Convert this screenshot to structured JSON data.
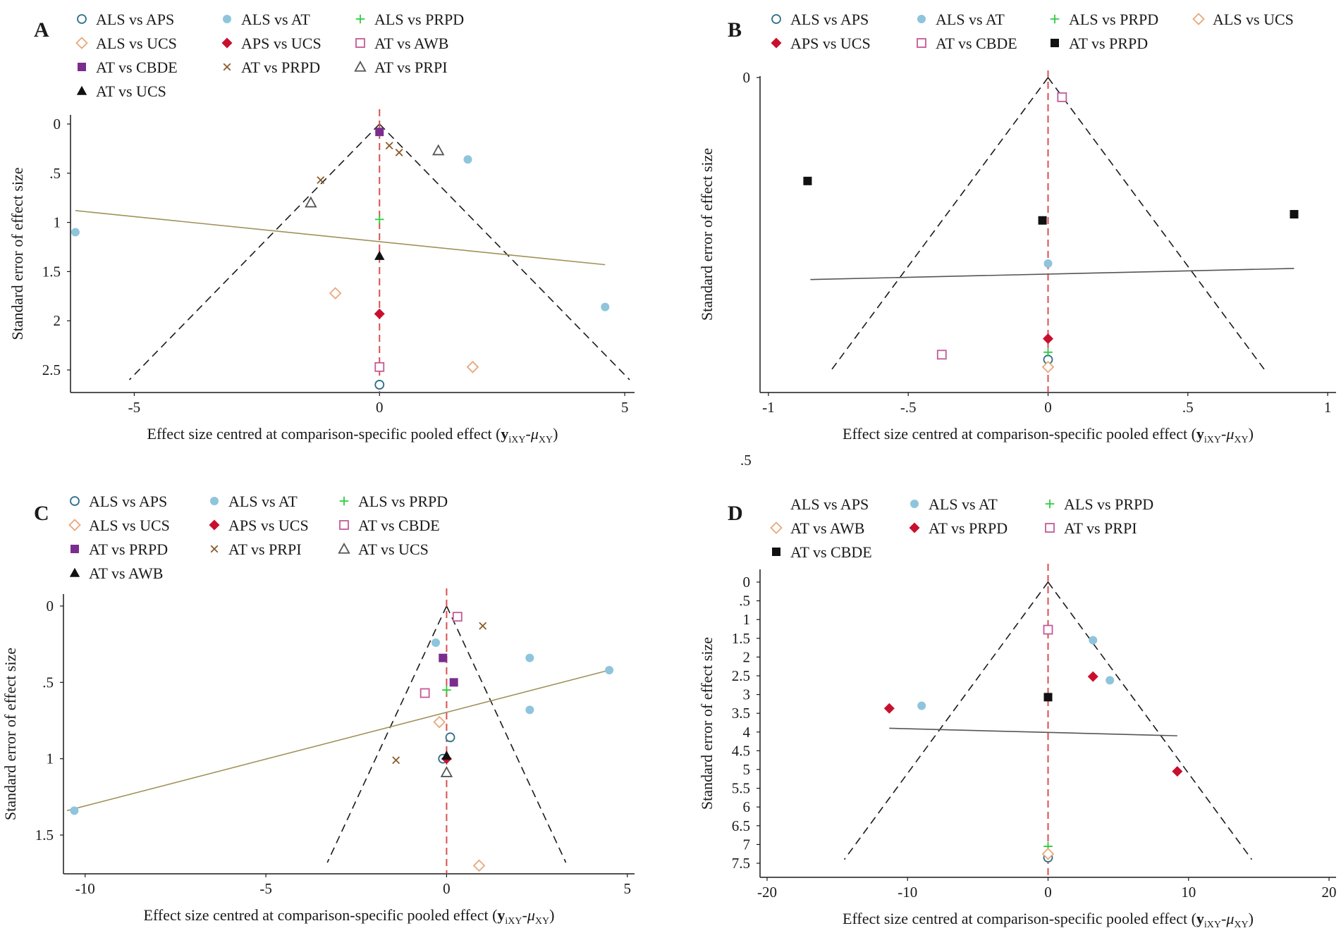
{
  "colors": {
    "axis": "#1a1a1a",
    "funnel": "#1a1a1a",
    "ref_line": "#d94f4f",
    "reg_olive": "#a0915a",
    "reg_gray": "#555555",
    "light_blue": "#8ec5dc",
    "teal": "#2b6e8a",
    "green": "#2ecc40",
    "orange": "#e8a87c",
    "red": "#c8102e",
    "pink": "#c25a9a",
    "purple": "#7b2d8e",
    "brown": "#8b5a2b",
    "gray": "#555555",
    "black": "#111111"
  },
  "stray_label": ".5",
  "chart_data": [
    {
      "id": "A",
      "type": "scatter",
      "title": "",
      "xlabel_prefix": "Effect size centred at comparison-specific pooled effect (",
      "xlabel_y": "y",
      "xlabel_sub1": "iXY",
      "xlabel_mid": "-",
      "xlabel_mu": "μ",
      "xlabel_sub2": "XY",
      "xlabel_suffix": ")",
      "ylabel": "Standard error of effect size",
      "xlim": [
        -6.3,
        5.2
      ],
      "ylim": [
        0,
        2.75
      ],
      "xticks": [
        -5,
        0,
        5
      ],
      "xtick_labels": [
        "-5",
        "0",
        "5"
      ],
      "yticks": [
        0,
        0.5,
        1,
        1.5,
        2,
        2.5
      ],
      "ytick_labels": [
        "0",
        ".5",
        "1",
        "1.5",
        "2",
        "2.5"
      ],
      "funnel": {
        "apex": [
          0,
          0
        ],
        "base_se": 2.6,
        "half_width": 5.1
      },
      "ref_x": 0,
      "regression": {
        "color": "reg_olive",
        "from": [
          -6.2,
          0.88
        ],
        "to": [
          4.6,
          1.43
        ]
      },
      "legend": [
        {
          "label": "ALS vs APS",
          "marker": "circle-open",
          "color": "teal"
        },
        {
          "label": "ALS vs AT",
          "marker": "circle",
          "color": "light_blue"
        },
        {
          "label": "ALS vs PRPD",
          "marker": "plus",
          "color": "green"
        },
        {
          "label": "ALS vs UCS",
          "marker": "diamond-open",
          "color": "orange"
        },
        {
          "label": "APS vs UCS",
          "marker": "diamond",
          "color": "red"
        },
        {
          "label": "AT vs AWB",
          "marker": "square-open",
          "color": "pink"
        },
        {
          "label": "AT vs CBDE",
          "marker": "square",
          "color": "purple"
        },
        {
          "label": "AT vs PRPD",
          "marker": "x",
          "color": "brown"
        },
        {
          "label": "AT vs PRPI",
          "marker": "triangle-open",
          "color": "gray"
        },
        {
          "label": "AT vs UCS",
          "marker": "triangle",
          "color": "black"
        }
      ],
      "series": [
        {
          "name": "ALS vs APS",
          "points": [
            [
              0,
              2.65
            ]
          ]
        },
        {
          "name": "ALS vs AT",
          "points": [
            [
              1.8,
              0.36
            ],
            [
              -6.2,
              1.1
            ],
            [
              4.6,
              1.86
            ]
          ]
        },
        {
          "name": "ALS vs PRPD",
          "points": [
            [
              0,
              0.97
            ]
          ]
        },
        {
          "name": "ALS vs UCS",
          "points": [
            [
              -0.9,
              1.72
            ],
            [
              1.9,
              2.47
            ]
          ]
        },
        {
          "name": "APS vs UCS",
          "points": [
            [
              0,
              1.93
            ]
          ]
        },
        {
          "name": "AT vs AWB",
          "points": [
            [
              0,
              2.47
            ]
          ]
        },
        {
          "name": "AT vs CBDE",
          "points": [
            [
              0,
              0.08
            ]
          ]
        },
        {
          "name": "AT vs PRPD",
          "points": [
            [
              0.2,
              0.22
            ],
            [
              0.4,
              0.29
            ],
            [
              -1.2,
              0.57
            ]
          ]
        },
        {
          "name": "AT vs PRPI",
          "points": [
            [
              1.2,
              0.27
            ],
            [
              -1.4,
              0.8
            ]
          ]
        },
        {
          "name": "AT vs UCS",
          "points": [
            [
              0,
              1.34
            ]
          ]
        }
      ]
    },
    {
      "id": "B",
      "type": "scatter",
      "title": "",
      "xlabel_prefix": "Effect size centred at comparison-specific pooled effect (",
      "xlabel_y": "y",
      "xlabel_sub1": "iXY",
      "xlabel_mid": "-",
      "xlabel_mu": "μ",
      "xlabel_sub2": "XY",
      "xlabel_suffix": ")",
      "ylabel": "Standard error of effect size",
      "xlim": [
        -1.03,
        1.03
      ],
      "ylim": [
        0,
        2.5
      ],
      "xticks": [
        -1,
        -0.5,
        0,
        0.5,
        1
      ],
      "xtick_labels": [
        "-1",
        "-.5",
        "0",
        ".5",
        "1"
      ],
      "yticks": [
        0
      ],
      "ytick_labels": [
        "0"
      ],
      "funnel": {
        "apex": [
          0,
          0
        ],
        "base_se": 2.39,
        "half_width": 0.78
      },
      "ref_x": 0,
      "regression": {
        "color": "reg_gray",
        "from": [
          -0.85,
          1.64
        ],
        "to": [
          0.88,
          1.55
        ]
      },
      "legend": [
        {
          "label": "ALS vs APS",
          "marker": "circle-open",
          "color": "teal"
        },
        {
          "label": "ALS vs AT",
          "marker": "circle",
          "color": "light_blue"
        },
        {
          "label": "ALS vs PRPD",
          "marker": "plus",
          "color": "green"
        },
        {
          "label": "ALS vs UCS",
          "marker": "diamond-open",
          "color": "orange"
        },
        {
          "label": "APS vs UCS",
          "marker": "diamond",
          "color": "red"
        },
        {
          "label": "AT vs CBDE",
          "marker": "square-open",
          "color": "pink"
        },
        {
          "label": "AT vs PRPD",
          "marker": "square",
          "color": "black"
        }
      ],
      "series": [
        {
          "name": "ALS vs APS",
          "points": [
            [
              0,
              2.29
            ]
          ]
        },
        {
          "name": "ALS vs AT",
          "points": [
            [
              0,
              1.51
            ]
          ]
        },
        {
          "name": "ALS vs PRPD",
          "points": [
            [
              0,
              2.23
            ]
          ]
        },
        {
          "name": "ALS vs UCS",
          "points": [
            [
              0,
              2.35
            ]
          ]
        },
        {
          "name": "APS vs UCS",
          "points": [
            [
              0,
              2.12
            ]
          ]
        },
        {
          "name": "AT vs CBDE",
          "points": [
            [
              0.05,
              0.16
            ],
            [
              -0.38,
              2.25
            ]
          ]
        },
        {
          "name": "AT vs PRPD",
          "points": [
            [
              -0.86,
              0.84
            ],
            [
              -0.02,
              1.16
            ],
            [
              0.88,
              1.11
            ]
          ]
        }
      ]
    },
    {
      "id": "C",
      "type": "scatter",
      "title": "",
      "xlabel_prefix": "Effect size centred at comparison-specific pooled effect (",
      "xlabel_y": "y",
      "xlabel_sub1": "iXY",
      "xlabel_mid": "-",
      "xlabel_mu": "μ",
      "xlabel_sub2": "XY",
      "xlabel_suffix": ")",
      "ylabel": "Standard error of effect size",
      "xlim": [
        -10.6,
        5.2
      ],
      "ylim": [
        0,
        1.77
      ],
      "xticks": [
        -10,
        -5,
        0,
        5
      ],
      "xtick_labels": [
        "-10",
        "-5",
        "0",
        "5"
      ],
      "yticks": [
        0,
        0.5,
        1,
        1.5
      ],
      "ytick_labels": [
        "0",
        ".5",
        "1",
        "1.5"
      ],
      "funnel": {
        "apex": [
          0,
          0
        ],
        "base_se": 1.68,
        "half_width": 3.3
      },
      "ref_x": 0,
      "regression": {
        "color": "reg_olive",
        "from": [
          -10.5,
          1.34
        ],
        "to": [
          4.5,
          0.42
        ]
      },
      "legend": [
        {
          "label": "ALS vs APS",
          "marker": "circle-open",
          "color": "teal"
        },
        {
          "label": "ALS vs AT",
          "marker": "circle",
          "color": "light_blue"
        },
        {
          "label": "ALS vs PRPD",
          "marker": "plus",
          "color": "green"
        },
        {
          "label": "ALS vs UCS",
          "marker": "diamond-open",
          "color": "orange"
        },
        {
          "label": "APS vs UCS",
          "marker": "diamond",
          "color": "red"
        },
        {
          "label": "AT vs CBDE",
          "marker": "square-open",
          "color": "pink"
        },
        {
          "label": "AT vs PRPD",
          "marker": "square",
          "color": "purple"
        },
        {
          "label": "AT vs PRPI",
          "marker": "x",
          "color": "brown"
        },
        {
          "label": "AT vs UCS",
          "marker": "triangle-open",
          "color": "gray"
        },
        {
          "label": "AT vs AWB",
          "marker": "triangle",
          "color": "black"
        }
      ],
      "series": [
        {
          "name": "ALS vs APS",
          "points": [
            [
              0.1,
              0.86
            ],
            [
              -0.1,
              1.0
            ]
          ]
        },
        {
          "name": "ALS vs AT",
          "points": [
            [
              -0.3,
              0.24
            ],
            [
              2.3,
              0.34
            ],
            [
              4.5,
              0.42
            ],
            [
              2.3,
              0.68
            ],
            [
              -10.3,
              1.34
            ]
          ]
        },
        {
          "name": "ALS vs PRPD",
          "points": [
            [
              0,
              0.55
            ]
          ]
        },
        {
          "name": "ALS vs UCS",
          "points": [
            [
              -0.2,
              0.76
            ],
            [
              0.9,
              1.7
            ]
          ]
        },
        {
          "name": "APS vs UCS",
          "points": [
            [
              0,
              1.0
            ]
          ]
        },
        {
          "name": "AT vs CBDE",
          "points": [
            [
              0.3,
              0.07
            ],
            [
              -0.6,
              0.57
            ]
          ]
        },
        {
          "name": "AT vs PRPD",
          "points": [
            [
              -0.1,
              0.34
            ],
            [
              0.2,
              0.5
            ]
          ]
        },
        {
          "name": "AT vs PRPI",
          "points": [
            [
              1.0,
              0.13
            ],
            [
              -1.4,
              1.01
            ]
          ]
        },
        {
          "name": "AT vs UCS",
          "points": [
            [
              0,
              1.09
            ]
          ]
        },
        {
          "name": "AT vs AWB",
          "points": [
            [
              0,
              0.98
            ]
          ]
        }
      ]
    },
    {
      "id": "D",
      "type": "scatter",
      "title": "",
      "xlabel_prefix": "Effect size centred at comparison-specific pooled effect (",
      "xlabel_y": "y",
      "xlabel_sub1": "iXY",
      "xlabel_mid": "-",
      "xlabel_mu": "μ",
      "xlabel_sub2": "XY",
      "xlabel_suffix": ")",
      "ylabel": "Standard error of effect size",
      "xlim": [
        -20.5,
        20.5
      ],
      "ylim": [
        0,
        7.6
      ],
      "xticks": [
        -20,
        -10,
        0,
        10,
        20
      ],
      "xtick_labels": [
        "-20",
        "-10",
        "0",
        "10",
        "20"
      ],
      "yticks": [
        0,
        0.5,
        1,
        1.5,
        2,
        2.5,
        3,
        3.5,
        4,
        4.5,
        5,
        5.5,
        6,
        6.5,
        7,
        7.5
      ],
      "ytick_labels": [
        "0",
        ".5",
        "1",
        "1.5",
        "2",
        "2.5",
        "3",
        "3.5",
        "4",
        "4.5",
        "5",
        "5.5",
        "6",
        "6.5",
        "7",
        "7.5"
      ],
      "funnel": {
        "apex": [
          0,
          0
        ],
        "base_se": 7.4,
        "half_width": 14.5
      },
      "ref_x": 0,
      "regression": {
        "color": "reg_gray",
        "from": [
          -11.3,
          3.9
        ],
        "to": [
          9.2,
          4.1
        ]
      },
      "legend": [
        {
          "label": "ALS vs APS",
          "marker": "none",
          "color": "teal"
        },
        {
          "label": "ALS vs AT",
          "marker": "circle",
          "color": "light_blue"
        },
        {
          "label": "ALS vs PRPD",
          "marker": "plus",
          "color": "green"
        },
        {
          "label": "AT vs AWB",
          "marker": "diamond-open",
          "color": "orange"
        },
        {
          "label": "AT vs PRPD",
          "marker": "diamond",
          "color": "red"
        },
        {
          "label": "AT vs PRPI",
          "marker": "square-open",
          "color": "pink"
        },
        {
          "label": "AT vs CBDE",
          "marker": "square",
          "color": "black"
        }
      ],
      "series": [
        {
          "name": "ALS vs APS",
          "marker": "circle-open",
          "color": "teal",
          "points": [
            [
              0,
              7.35
            ]
          ]
        },
        {
          "name": "ALS vs AT",
          "points": [
            [
              3.2,
              1.55
            ],
            [
              4.4,
              2.62
            ],
            [
              -9.0,
              3.3
            ]
          ]
        },
        {
          "name": "ALS vs PRPD",
          "points": [
            [
              0,
              7.05
            ]
          ]
        },
        {
          "name": "AT vs AWB",
          "points": [
            [
              0,
              7.25
            ]
          ]
        },
        {
          "name": "AT vs PRPD",
          "points": [
            [
              3.2,
              2.52
            ],
            [
              -11.3,
              3.37
            ],
            [
              9.2,
              5.05
            ]
          ]
        },
        {
          "name": "AT vs PRPI",
          "points": [
            [
              0,
              1.27
            ]
          ]
        },
        {
          "name": "AT vs CBDE",
          "points": [
            [
              0,
              3.07
            ]
          ]
        }
      ]
    }
  ]
}
